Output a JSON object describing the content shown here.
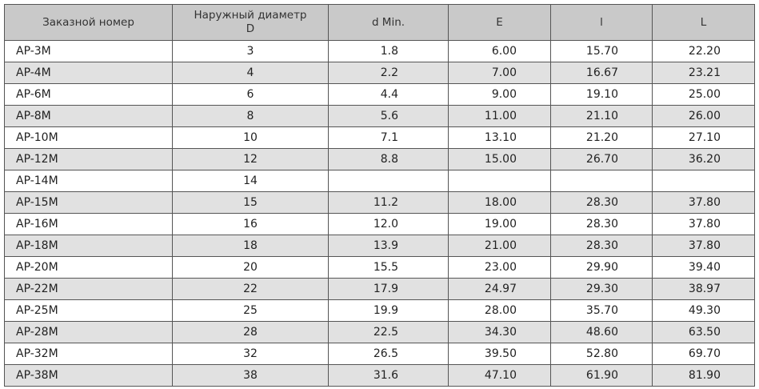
{
  "table": {
    "header": [
      "Заказной номер",
      [
        "Наружный диаметр",
        "D"
      ],
      "d Min.",
      "E",
      "l",
      "L"
    ],
    "rows": [
      [
        "AP-3M",
        "3",
        "1.8",
        "6.00",
        "15.70",
        "22.20"
      ],
      [
        "AP-4M",
        "4",
        "2.2",
        "7.00",
        "16.67",
        "23.21"
      ],
      [
        "AP-6M",
        "6",
        "4.4",
        "9.00",
        "19.10",
        "25.00"
      ],
      [
        "AP-8M",
        "8",
        "5.6",
        "11.00",
        "21.10",
        "26.00"
      ],
      [
        "AP-10M",
        "10",
        "7.1",
        "13.10",
        "21.20",
        "27.10"
      ],
      [
        "AP-12M",
        "12",
        "8.8",
        "15.00",
        "26.70",
        "36.20"
      ],
      [
        "AP-14M",
        "14"
      ],
      [
        "AP-15M",
        "15",
        "11.2",
        "18.00",
        "28.30",
        "37.80"
      ],
      [
        "AP-16M",
        "16",
        "12.0",
        "19.00",
        "28.30",
        "37.80"
      ],
      [
        "AP-18M",
        "18",
        "13.9",
        "21.00",
        "28.30",
        "37.80"
      ],
      [
        "AP-20M",
        "20",
        "15.5",
        "23.00",
        "29.90",
        "39.40"
      ],
      [
        "AP-22M",
        "22",
        "17.9",
        "24.97",
        "29.30",
        "38.97"
      ],
      [
        "AP-25M",
        "25",
        "19.9",
        "28.00",
        "35.70",
        "49.30"
      ],
      [
        "AP-28M",
        "28",
        "22.5",
        "34.30",
        "48.60",
        "63.50"
      ],
      [
        "AP-32M",
        "32",
        "26.5",
        "39.50",
        "52.80",
        "69.70"
      ],
      [
        "AP-38M",
        "38",
        "31.6",
        "47.10",
        "61.90",
        "81.90"
      ]
    ]
  }
}
